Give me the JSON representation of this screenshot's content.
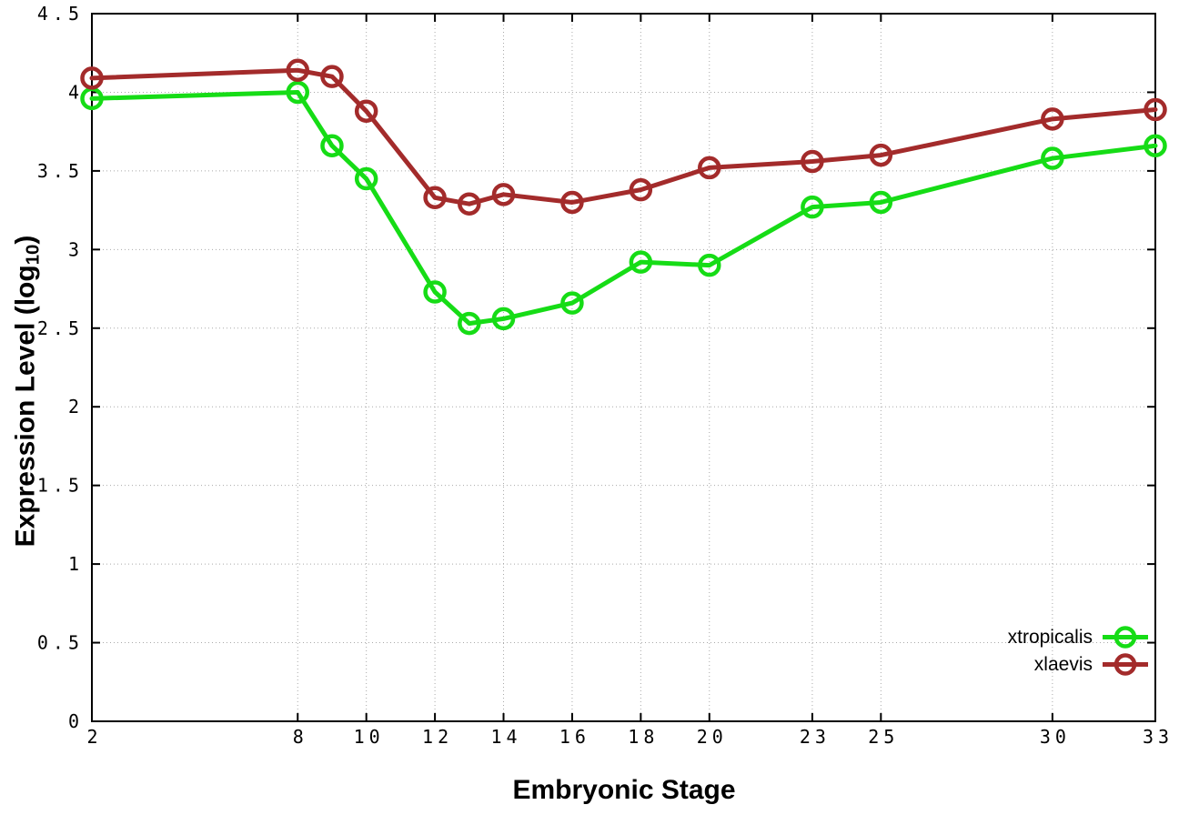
{
  "figure": {
    "xlabel": "Embryonic Stage",
    "ylabel_prefix": "Expression Level (log",
    "ylabel_sub": "10",
    "ylabel_suffix": ")"
  },
  "chart_data": {
    "type": "line",
    "title": "",
    "xlabel": "Embryonic Stage",
    "ylabel": "Expression Level (log10)",
    "x": [
      2,
      8,
      9,
      10,
      12,
      13,
      14,
      16,
      18,
      20,
      23,
      25,
      30,
      33
    ],
    "series": [
      {
        "name": "xtropicalis",
        "color": "#16dc16",
        "values": [
          3.96,
          4.0,
          3.66,
          3.45,
          2.73,
          2.53,
          2.56,
          2.66,
          2.92,
          2.9,
          3.27,
          3.3,
          3.58,
          3.66
        ]
      },
      {
        "name": "xlaevis",
        "color": "#a32b2b",
        "values": [
          4.09,
          4.14,
          4.1,
          3.88,
          3.33,
          3.29,
          3.35,
          3.3,
          3.38,
          3.52,
          3.56,
          3.6,
          3.83,
          3.89
        ]
      }
    ],
    "xlim": [
      2,
      33
    ],
    "ylim": [
      0,
      4.5
    ],
    "xticks": {
      "values": [
        2,
        8,
        10,
        12,
        14,
        16,
        18,
        20,
        23,
        25,
        30,
        33
      ],
      "labels": [
        "2",
        "8",
        "10",
        "12",
        "14",
        "16",
        "18",
        "20",
        "23",
        "25",
        "30",
        "33"
      ]
    },
    "yticks": {
      "values": [
        0,
        0.5,
        1,
        1.5,
        2,
        2.5,
        3,
        3.5,
        4,
        4.5
      ],
      "labels": [
        "0",
        "0.5",
        "1",
        "1.5",
        "2",
        "2.5",
        "3",
        "3.5",
        "4",
        "4.5"
      ]
    },
    "grid": true,
    "legend_position": "bottom-right",
    "background": "#ffffff",
    "grid_color": "#a9a9a9",
    "axis_color": "#000000",
    "marker": "open-circle"
  }
}
